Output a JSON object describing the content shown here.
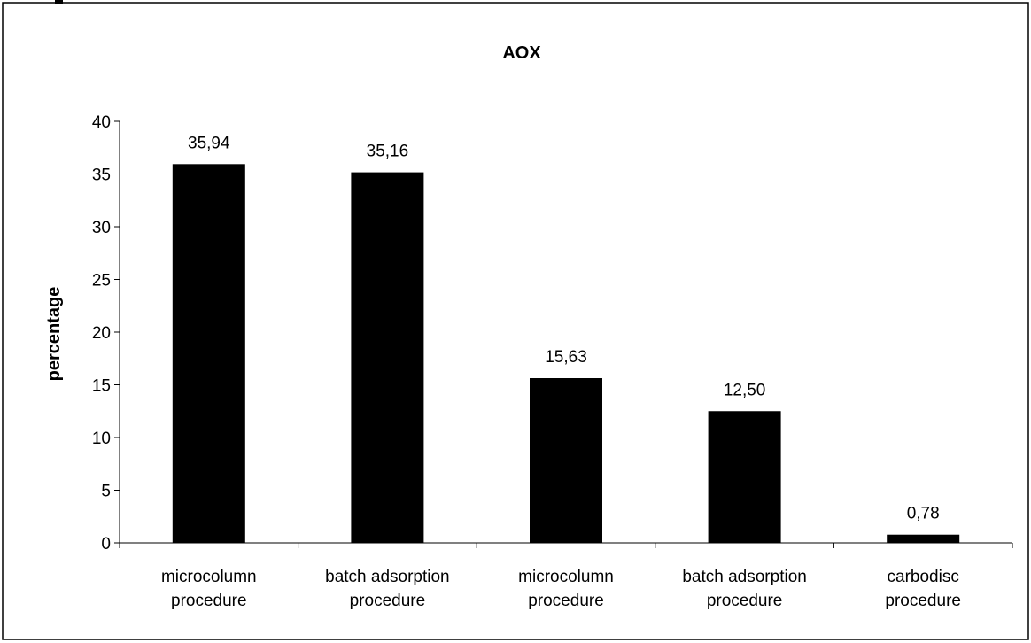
{
  "chart_data": {
    "type": "bar",
    "title": "AOX",
    "ylabel": "percentage",
    "xlabel": "",
    "ylim": [
      0,
      40
    ],
    "yticks": [
      0,
      5,
      10,
      15,
      20,
      25,
      30,
      35,
      40
    ],
    "categories": [
      [
        "microcolumn",
        "procedure"
      ],
      [
        "batch adsorption",
        "procedure"
      ],
      [
        "microcolumn",
        "procedure"
      ],
      [
        "batch adsorption",
        "procedure"
      ],
      [
        "carbodisc",
        "procedure"
      ]
    ],
    "values": [
      35.94,
      35.16,
      15.63,
      12.5,
      0.78
    ],
    "data_labels": [
      "35,94",
      "35,16",
      "15,63",
      "12,50",
      "0,78"
    ],
    "bar_color": "#000000",
    "grid": false,
    "legend": "none"
  }
}
